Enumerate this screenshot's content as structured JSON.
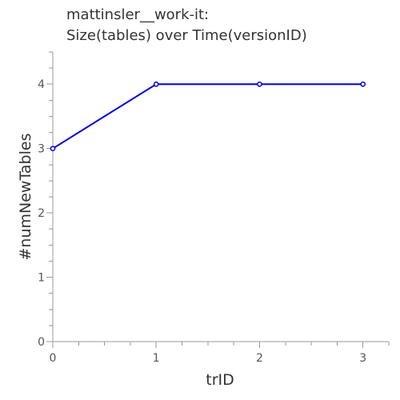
{
  "chart_data": {
    "type": "line",
    "title": "mattinsler__work-it:",
    "subtitle": "Size(tables) over Time(versionID)",
    "xlabel": "trID",
    "ylabel": "#numNewTables",
    "x": [
      0,
      1,
      2,
      3
    ],
    "series": [
      {
        "values": [
          3,
          4,
          4,
          4
        ],
        "color": "#0000dd"
      }
    ],
    "xlim": [
      0,
      3.25
    ],
    "ylim": [
      0,
      4.5
    ],
    "x_ticks": [
      "0",
      "1",
      "2",
      "3"
    ],
    "y_ticks": [
      "0",
      "1",
      "2",
      "3",
      "4"
    ],
    "grid": false,
    "legend": "none"
  }
}
